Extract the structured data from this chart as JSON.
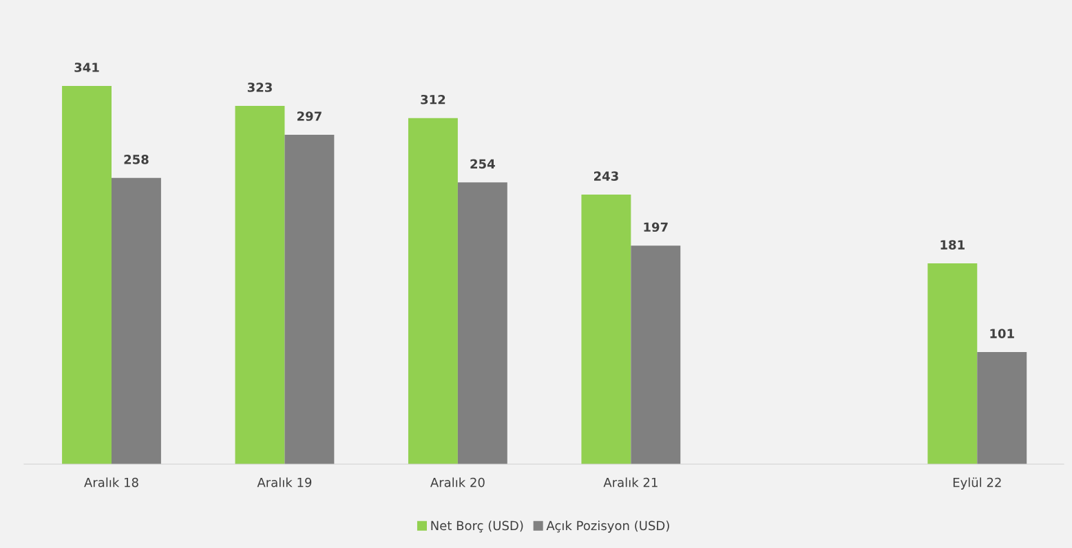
{
  "chart_data": {
    "type": "bar",
    "categories": [
      "Aralık 18",
      "Aralık 19",
      "Aralık 20",
      "Aralık 21",
      null,
      "Eylül 22"
    ],
    "series": [
      {
        "name": "Net Borç (USD)",
        "color": "#92d050",
        "values": [
          341,
          323,
          312,
          243,
          null,
          181
        ]
      },
      {
        "name": "Açık Pozisyon (USD)",
        "color": "#808080",
        "values": [
          258,
          297,
          254,
          197,
          null,
          101
        ]
      }
    ],
    "tick_labels": "x",
    "data_labels": true,
    "grid": false,
    "legend": "bottom"
  }
}
